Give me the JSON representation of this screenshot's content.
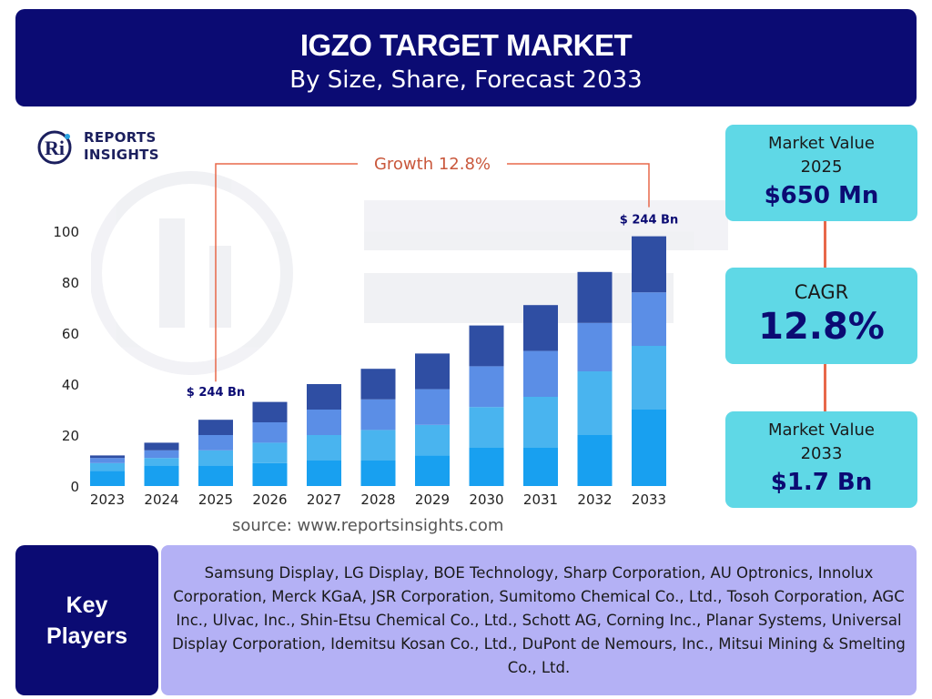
{
  "header": {
    "title": "IGZO TARGET MARKET",
    "subtitle": "By Size, Share, Forecast 2033"
  },
  "logo": {
    "mark": "Ri",
    "line1": "REPORTS",
    "line2": "INSIGHTS"
  },
  "chart_data": {
    "type": "bar",
    "stacked": true,
    "categories": [
      "2023",
      "2024",
      "2025",
      "2026",
      "2027",
      "2028",
      "2029",
      "2030",
      "2031",
      "2032",
      "2033"
    ],
    "series": [
      {
        "values": [
          6,
          8,
          8,
          9,
          10,
          10,
          12,
          15,
          15,
          20,
          30
        ]
      },
      {
        "values": [
          3,
          3,
          6,
          8,
          10,
          12,
          12,
          16,
          20,
          25,
          25
        ]
      },
      {
        "values": [
          2,
          3,
          6,
          8,
          10,
          12,
          14,
          16,
          18,
          19,
          21
        ]
      },
      {
        "values": [
          1,
          3,
          6,
          8,
          10,
          12,
          14,
          16,
          18,
          20,
          22
        ]
      }
    ],
    "colors": [
      "#18a0f0",
      "#49b4ef",
      "#5b8ee6",
      "#2f4ea3"
    ],
    "yticks": [
      0,
      20,
      40,
      60,
      80,
      100
    ],
    "ylim": [
      0,
      100
    ],
    "grid": false,
    "annotations": {
      "start_label": "$ 244 Bn",
      "end_label": "$ 244 Bn",
      "growth_label": "Growth",
      "growth_value": "12.8%",
      "line_color": "#e8684a"
    }
  },
  "source": "source: www.reportsinsights.com",
  "cards": {
    "market_value_start": {
      "label_line1": "Market Value",
      "label_line2": "2025",
      "value": "$650 Mn"
    },
    "cagr": {
      "label": "CAGR",
      "value": "12.8%"
    },
    "market_value_end": {
      "label_line1": "Market Value",
      "label_line2": "2033",
      "value": "$1.7 Bn"
    }
  },
  "key_players": {
    "heading_line1": "Key",
    "heading_line2": "Players",
    "list": "Samsung Display, LG Display, BOE Technology, Sharp Corporation, AU Optronics, Innolux Corporation, Merck KGaA, JSR Corporation, Sumitomo Chemical Co., Ltd., Tosoh Corporation, AGC Inc., Ulvac, Inc., Shin-Etsu Chemical Co., Ltd., Schott AG, Corning Inc., Planar Systems, Universal Display Corporation, Idemitsu Kosan Co., Ltd., DuPont de Nemours, Inc., Mitsui Mining & Smelting Co., Ltd."
  }
}
